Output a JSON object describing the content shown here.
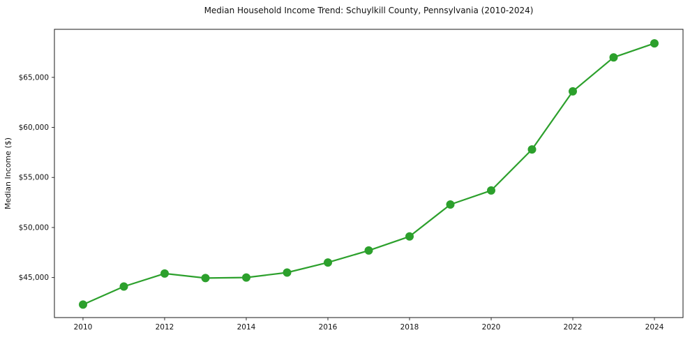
{
  "chart_data": {
    "type": "line",
    "title": "Median Household Income Trend: Schuylkill County, Pennsylvania (2010-2024)",
    "xlabel": "",
    "ylabel": "Median Income ($)",
    "x": [
      2010,
      2011,
      2012,
      2013,
      2014,
      2015,
      2016,
      2017,
      2018,
      2019,
      2020,
      2021,
      2022,
      2023,
      2024
    ],
    "y": [
      42300,
      44100,
      45400,
      44950,
      45000,
      45500,
      46500,
      47700,
      49100,
      52300,
      53700,
      57800,
      63600,
      67000,
      68400
    ],
    "series_name": "Median Household Income",
    "xticks": [
      2010,
      2012,
      2014,
      2016,
      2018,
      2020,
      2022,
      2024
    ],
    "yticks": [
      45000,
      50000,
      55000,
      60000,
      65000
    ],
    "xlim": [
      2009.3,
      2024.7
    ],
    "ylim": [
      41000,
      69800
    ],
    "grid": true,
    "grid_style": "dashed",
    "legend": false,
    "line_color": "#2ca02c",
    "marker": "circle",
    "y_tick_prefix": "$"
  }
}
